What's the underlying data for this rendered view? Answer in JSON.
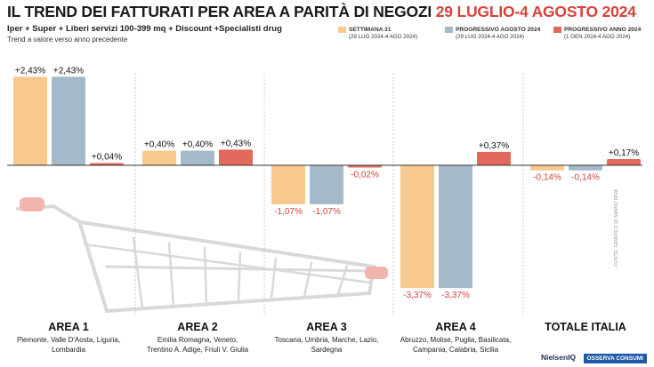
{
  "header": {
    "title_main": "IL TREND DEI FATTURATI PER AREA A PARITÀ DI NEGOZI",
    "title_dates": "29 LUGLIO-4 AGOSTO 2024",
    "subtitle": "Iper + Super + Liberi servizi 100-399 mq + Discount +Specialisti drug",
    "note": "Trend a valore verso anno precedente"
  },
  "legend": [
    {
      "name": "SETTIMANA 31",
      "range": "(29 LUG 2024-4 AGO 2024)",
      "color": "#f7c98c"
    },
    {
      "name": "PROGRESSIVO AGOSTO 2024",
      "range": "(29 LUG 2024-4 AGO 2024)",
      "color": "#a4b9c9"
    },
    {
      "name": "PROGRESSIVO ANNO 2024",
      "range": "(1 GEN 2024-4 AGO 2024)",
      "color": "#e2685b"
    }
  ],
  "footer": {
    "source_logo": "NielsenIQ",
    "partner_logo": "OSSERVA CONSUMI",
    "credit": "FONTE: GRAFICO DI MARIO RIVA"
  },
  "chart_data": {
    "type": "bar",
    "categories": [
      "AREA 1",
      "AREA 2",
      "AREA 3",
      "AREA 4",
      "TOTALE ITALIA"
    ],
    "category_regions": [
      [
        "Piemonte, Valle D'Aosta, Liguria,",
        "Lombardia"
      ],
      [
        "Emilia Romagna, Veneto,",
        "Trentino A. Adige, Friuli V. Giulia"
      ],
      [
        "Toscana, Umbria, Marche, Lazio,",
        "Sardegna"
      ],
      [
        "Abruzzo, Molise, Puglia, Basilicata,",
        "Campania, Calabria, Sicilia"
      ],
      []
    ],
    "series": [
      {
        "name": "SETTIMANA 31",
        "values": [
          2.43,
          0.4,
          -1.07,
          -3.37,
          -0.14
        ],
        "labels": [
          "+2,43%",
          "+0,40%",
          "-1,07%",
          "-3,37%",
          "-0,14%"
        ]
      },
      {
        "name": "PROGRESSIVO AGOSTO 2024",
        "values": [
          2.43,
          0.4,
          -1.07,
          -3.37,
          -0.14
        ],
        "labels": [
          "+2,43%",
          "+0,40%",
          "-1,07%",
          "-3,37%",
          "-0,14%"
        ]
      },
      {
        "name": "PROGRESSIVO ANNO 2024",
        "values": [
          0.04,
          0.43,
          -0.02,
          0.37,
          0.17
        ],
        "labels": [
          "+0,04%",
          "+0,43%",
          "-0,02%",
          "+0,37%",
          "+0,17%"
        ]
      }
    ],
    "ylim": [
      -3.5,
      2.6
    ],
    "colors": {
      "positive_label": "#111111",
      "negative_label": "#d9413b",
      "baseline": "#333333",
      "separator": "#c8c8c8"
    }
  }
}
